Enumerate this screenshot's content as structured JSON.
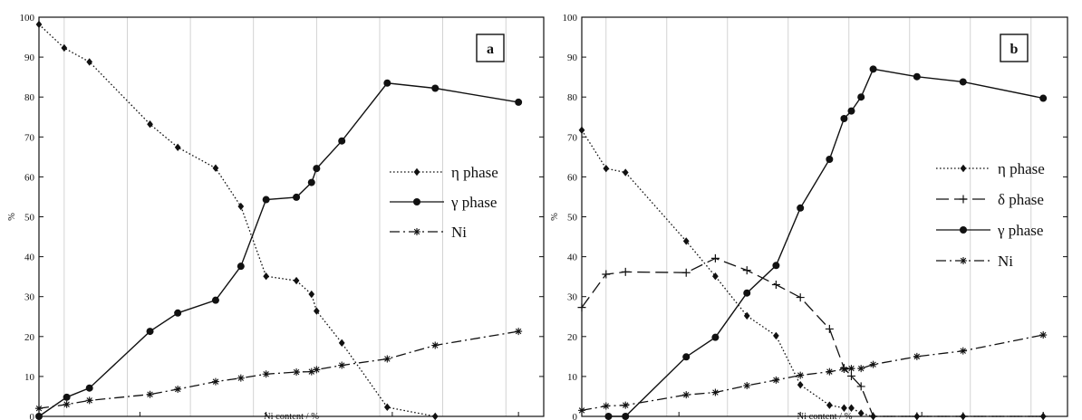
{
  "colors": {
    "ink": "#111111",
    "grid": "#c8c8c8",
    "background": "#ffffff"
  },
  "chart_data": [
    {
      "type": "line",
      "panel_label": "a",
      "xlabel": "Ni content / %",
      "ylabel": "%",
      "xlim": [
        1,
        21
      ],
      "ylim": [
        0,
        100
      ],
      "xticks": [
        5,
        10,
        15,
        20
      ],
      "yticks": [
        0,
        10,
        20,
        30,
        40,
        50,
        60,
        70,
        80,
        90,
        100
      ],
      "grid": "vertical",
      "legend_position": "right",
      "series": [
        {
          "name": "η phase",
          "line_style": "dotted",
          "marker": "diamond",
          "x": [
            1,
            2,
            3,
            5.4,
            6.5,
            8,
            9,
            10,
            11.2,
            11.8,
            12,
            13,
            14.8,
            16.7
          ],
          "y": [
            98.2,
            92.3,
            88.8,
            73.2,
            67.4,
            62.2,
            52.6,
            35.1,
            34,
            30.6,
            26.4,
            18.4,
            2.3,
            0
          ]
        },
        {
          "name": "γ phase",
          "line_style": "solid",
          "marker": "circle",
          "x": [
            1,
            2.1,
            3,
            5.4,
            6.5,
            8,
            9,
            10,
            11.2,
            11.8,
            12,
            13,
            14.8,
            16.7,
            20
          ],
          "y": [
            0,
            4.8,
            7.1,
            21.3,
            25.9,
            29.1,
            37.6,
            54.3,
            54.9,
            58.6,
            62.1,
            69,
            83.5,
            82.2,
            78.7
          ]
        },
        {
          "name": "Ni",
          "line_style": "dashdot",
          "marker": "star",
          "x": [
            1,
            2.1,
            3,
            5.4,
            6.5,
            8,
            9,
            10,
            11.2,
            11.8,
            12,
            13,
            14.8,
            16.7,
            20
          ],
          "y": [
            2,
            3,
            4,
            5.5,
            6.8,
            8.7,
            9.6,
            10.6,
            11.1,
            11.2,
            11.7,
            12.8,
            14.4,
            17.8,
            21.3
          ]
        }
      ]
    },
    {
      "type": "line",
      "panel_label": "b",
      "xlabel": "Ni content / %",
      "ylabel": "%",
      "xlim": [
        1,
        21
      ],
      "ylim": [
        0,
        100
      ],
      "xticks": [
        5,
        10,
        15,
        20
      ],
      "yticks": [
        0,
        10,
        20,
        30,
        40,
        50,
        60,
        70,
        80,
        90,
        100
      ],
      "grid": "vertical",
      "legend_position": "right",
      "series": [
        {
          "name": "η phase",
          "line_style": "dotted",
          "marker": "diamond",
          "x": [
            1,
            2,
            2.8,
            5.3,
            6.5,
            7.8,
            9,
            10,
            11.2,
            11.8,
            12.1,
            12.5,
            13,
            14.8,
            16.7,
            20
          ],
          "y": [
            71.7,
            62.1,
            61.1,
            43.9,
            35.1,
            25.2,
            20.2,
            7.9,
            2.8,
            2.1,
            2.1,
            0.8,
            0,
            0,
            0,
            0
          ]
        },
        {
          "name": "δ phase",
          "line_style": "dashed",
          "marker": "plus",
          "x": [
            1,
            2,
            2.8,
            5.3,
            6.5,
            7.8,
            9,
            10,
            11.2,
            11.8,
            12.1,
            12.5,
            13,
            14.8,
            16.7,
            20
          ],
          "y": [
            27.3,
            35.6,
            36.2,
            36,
            39.6,
            36.6,
            33,
            29.8,
            21.9,
            12.1,
            10.1,
            7.5,
            0,
            0,
            0,
            0
          ]
        },
        {
          "name": "γ phase",
          "line_style": "solid",
          "marker": "circle",
          "x": [
            2.1,
            2.8,
            5.3,
            6.5,
            7.8,
            9,
            10,
            11.2,
            11.8,
            12.1,
            12.5,
            13,
            14.8,
            16.7,
            20
          ],
          "y": [
            0,
            0,
            14.9,
            19.8,
            30.9,
            37.8,
            52.2,
            64.4,
            74.6,
            76.5,
            80,
            87,
            85.1,
            83.8,
            79.7
          ]
        },
        {
          "name": "Ni",
          "line_style": "dashdot",
          "marker": "star",
          "x": [
            1,
            2,
            2.8,
            5.3,
            6.5,
            7.8,
            9,
            10,
            11.2,
            11.8,
            12.1,
            12.5,
            13,
            14.8,
            16.7,
            20
          ],
          "y": [
            1.5,
            2.6,
            2.8,
            5.4,
            6,
            7.7,
            9.1,
            10.3,
            11.2,
            11.8,
            12,
            12,
            13,
            15,
            16.4,
            20.4
          ]
        }
      ]
    }
  ]
}
